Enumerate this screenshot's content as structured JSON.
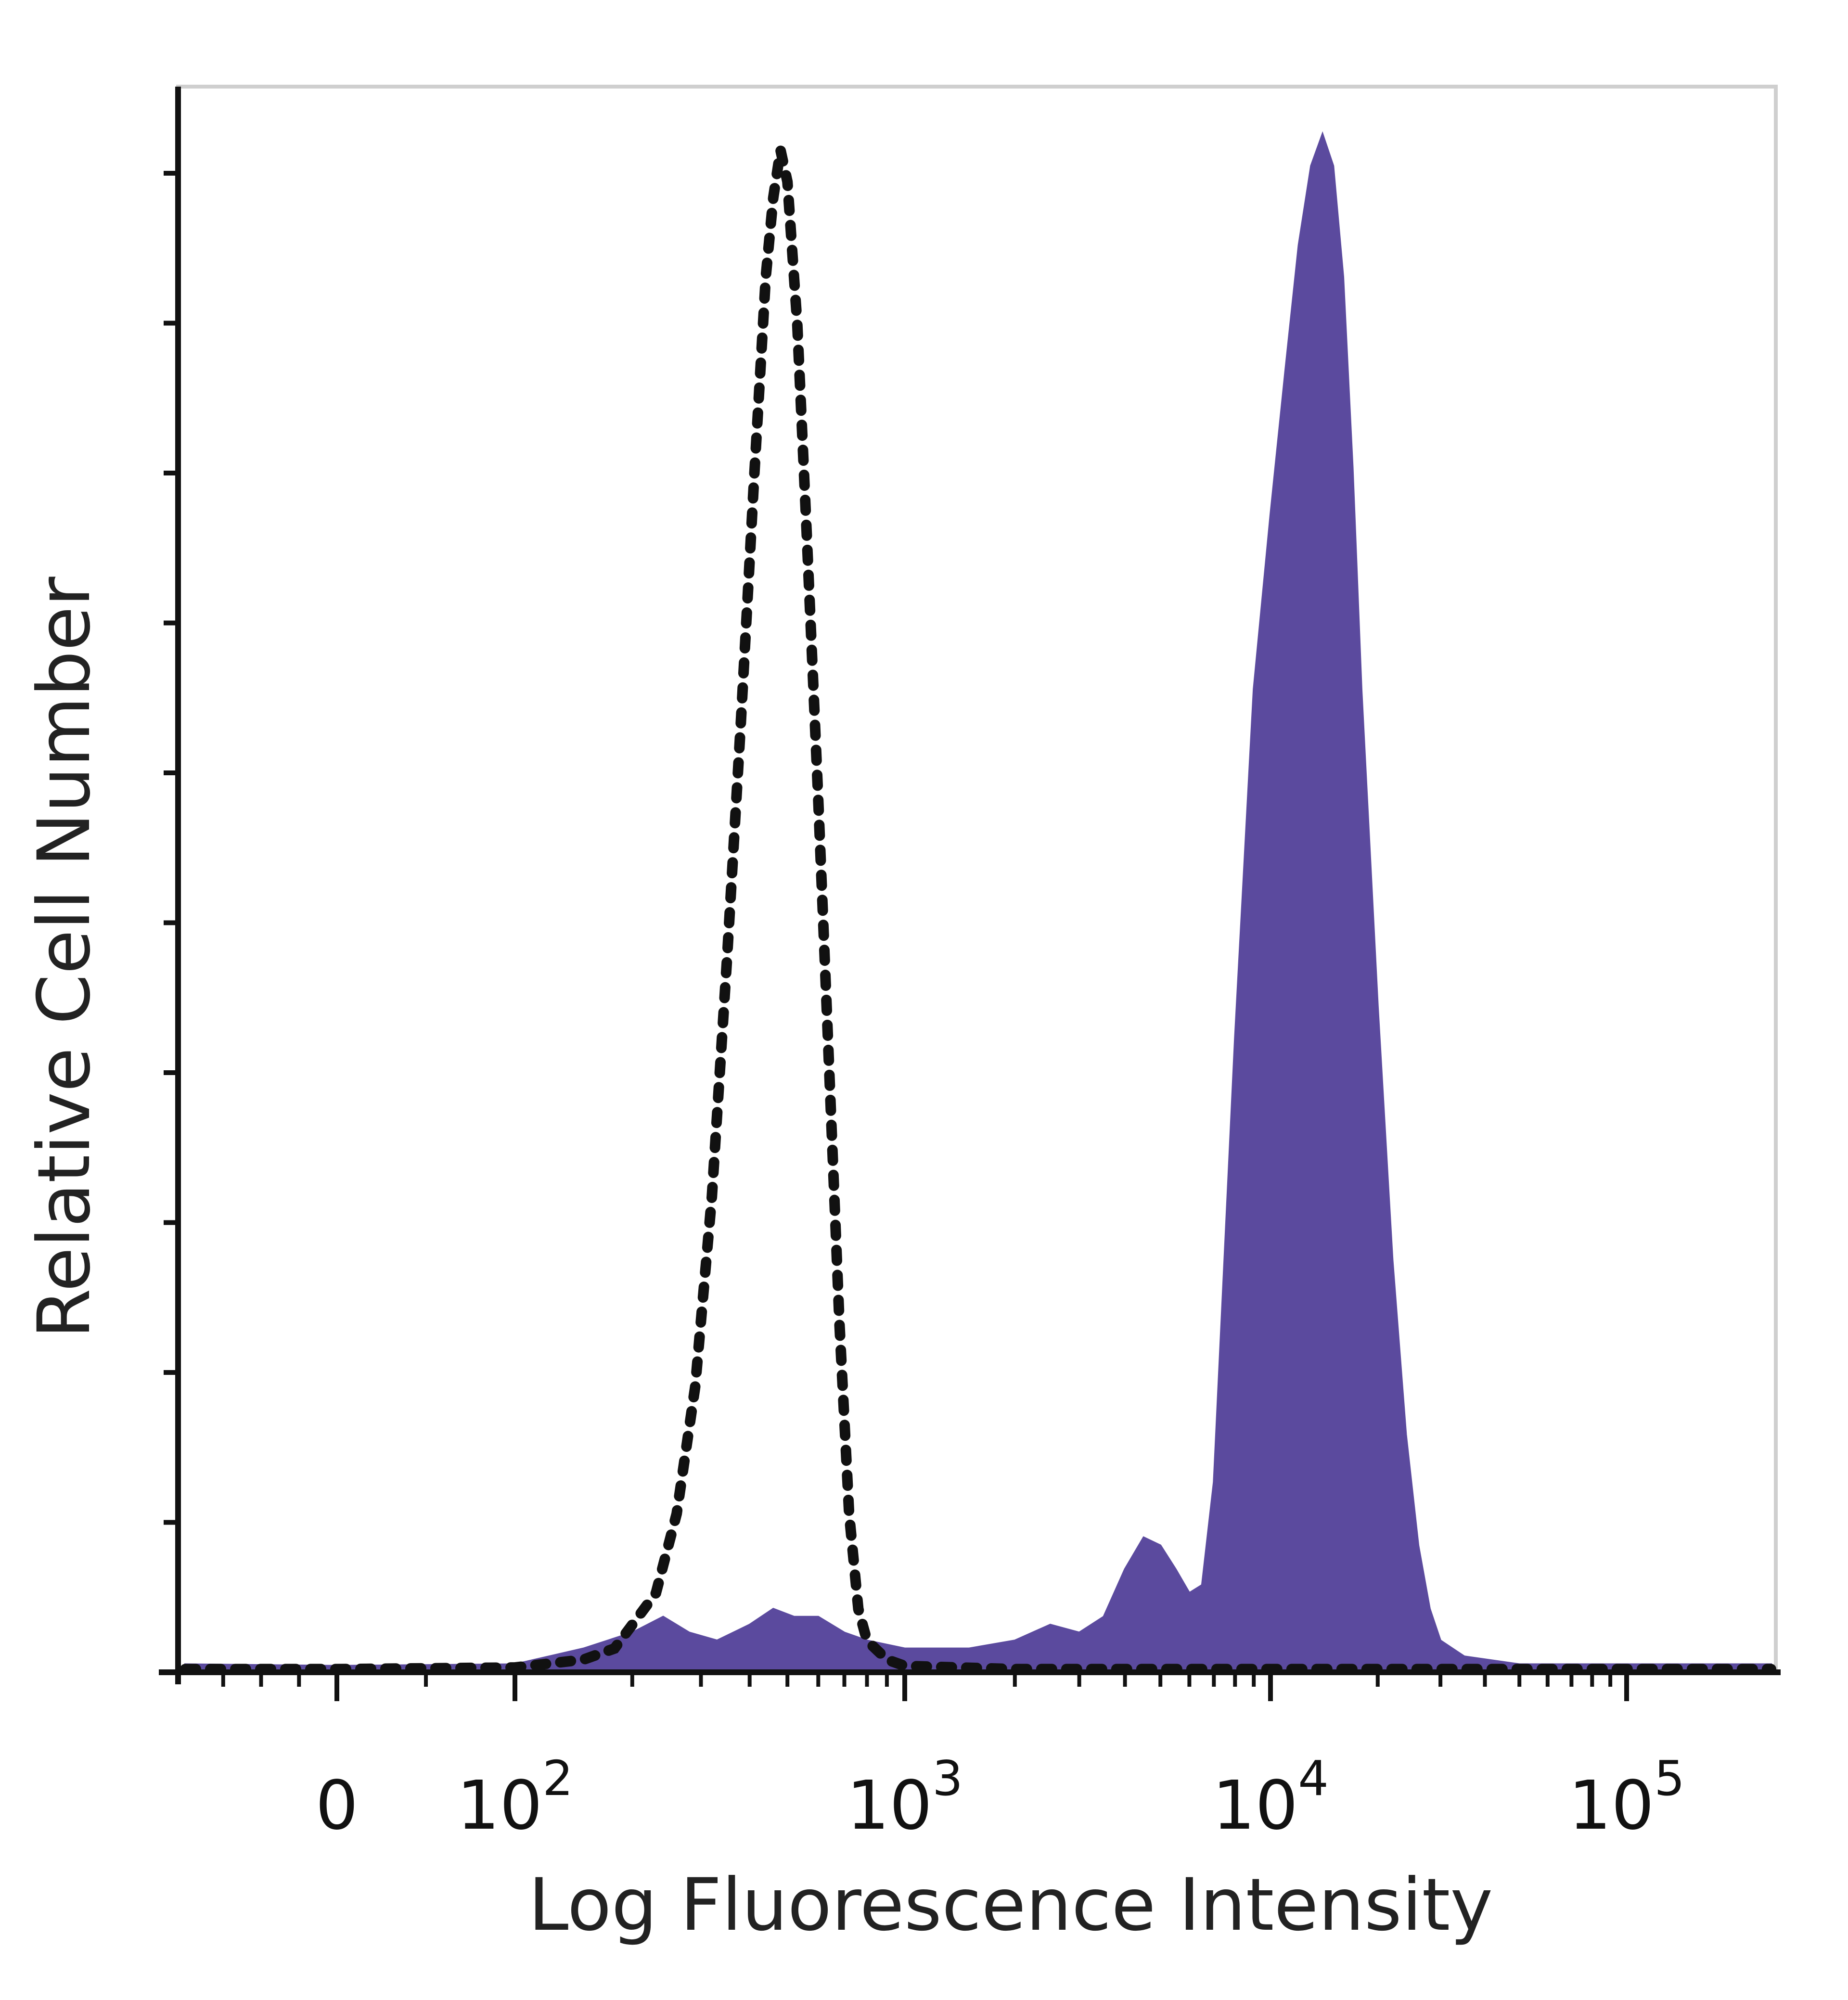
{
  "chart_data": {
    "type": "area",
    "xlabel": "Log Fluorescence Intensity",
    "ylabel": "Relative Cell Number",
    "x_scale": "biexponential",
    "x_ticks": [
      {
        "value": 0,
        "base": "0",
        "exp": ""
      },
      {
        "value": 100,
        "base": "10",
        "exp": "2"
      },
      {
        "value": 1000,
        "base": "10",
        "exp": "3"
      },
      {
        "value": 10000,
        "base": "10",
        "exp": "4"
      },
      {
        "value": 100000,
        "base": "10",
        "exp": "5"
      }
    ],
    "xlim": [
      -200,
      250000
    ],
    "ylim": [
      0,
      100
    ],
    "grid": false,
    "series": [
      {
        "style": "filled",
        "color": "#5b4a9e",
        "points": [
          [
            -200,
            0.5
          ],
          [
            0,
            0.4
          ],
          [
            100,
            0.5
          ],
          [
            150,
            1.5
          ],
          [
            200,
            2.5
          ],
          [
            240,
            3.5
          ],
          [
            280,
            2.5
          ],
          [
            330,
            2.0
          ],
          [
            400,
            3.0
          ],
          [
            460,
            4.0
          ],
          [
            520,
            3.5
          ],
          [
            600,
            3.5
          ],
          [
            700,
            2.5
          ],
          [
            800,
            2.0
          ],
          [
            1000,
            1.5
          ],
          [
            1500,
            1.5
          ],
          [
            2000,
            2.0
          ],
          [
            2500,
            3.0
          ],
          [
            3000,
            2.5
          ],
          [
            3500,
            3.5
          ],
          [
            4000,
            6.5
          ],
          [
            4500,
            8.5
          ],
          [
            5000,
            8.0
          ],
          [
            5500,
            6.5
          ],
          [
            6000,
            5.0
          ],
          [
            6500,
            5.5
          ],
          [
            7000,
            12.0
          ],
          [
            8000,
            40.0
          ],
          [
            9000,
            62.0
          ],
          [
            10000,
            73.0
          ],
          [
            11000,
            82.0
          ],
          [
            12000,
            90.0
          ],
          [
            13000,
            95.0
          ],
          [
            14000,
            97.0
          ],
          [
            15000,
            95.0
          ],
          [
            16000,
            88.0
          ],
          [
            17000,
            76.0
          ],
          [
            18000,
            62.0
          ],
          [
            20000,
            42.0
          ],
          [
            22000,
            26.0
          ],
          [
            24000,
            15.0
          ],
          [
            26000,
            8.0
          ],
          [
            28000,
            4.0
          ],
          [
            30000,
            2.0
          ],
          [
            35000,
            1.0
          ],
          [
            50000,
            0.5
          ],
          [
            100000,
            0.5
          ],
          [
            250000,
            0.5
          ]
        ]
      },
      {
        "style": "dotted",
        "color": "#111111",
        "points": [
          [
            -200,
            0.2
          ],
          [
            0,
            0.2
          ],
          [
            100,
            0.3
          ],
          [
            150,
            0.8
          ],
          [
            180,
            1.5
          ],
          [
            200,
            3.0
          ],
          [
            230,
            5.0
          ],
          [
            260,
            10.0
          ],
          [
            290,
            18.0
          ],
          [
            320,
            30.0
          ],
          [
            350,
            45.0
          ],
          [
            380,
            60.0
          ],
          [
            410,
            75.0
          ],
          [
            440,
            88.0
          ],
          [
            460,
            93.0
          ],
          [
            480,
            96.0
          ],
          [
            500,
            94.0
          ],
          [
            530,
            85.0
          ],
          [
            560,
            72.0
          ],
          [
            600,
            55.0
          ],
          [
            640,
            38.0
          ],
          [
            680,
            22.0
          ],
          [
            720,
            10.0
          ],
          [
            760,
            4.0
          ],
          [
            800,
            2.0
          ],
          [
            900,
            0.8
          ],
          [
            1000,
            0.4
          ],
          [
            2000,
            0.2
          ],
          [
            250000,
            0.2
          ]
        ]
      }
    ]
  }
}
